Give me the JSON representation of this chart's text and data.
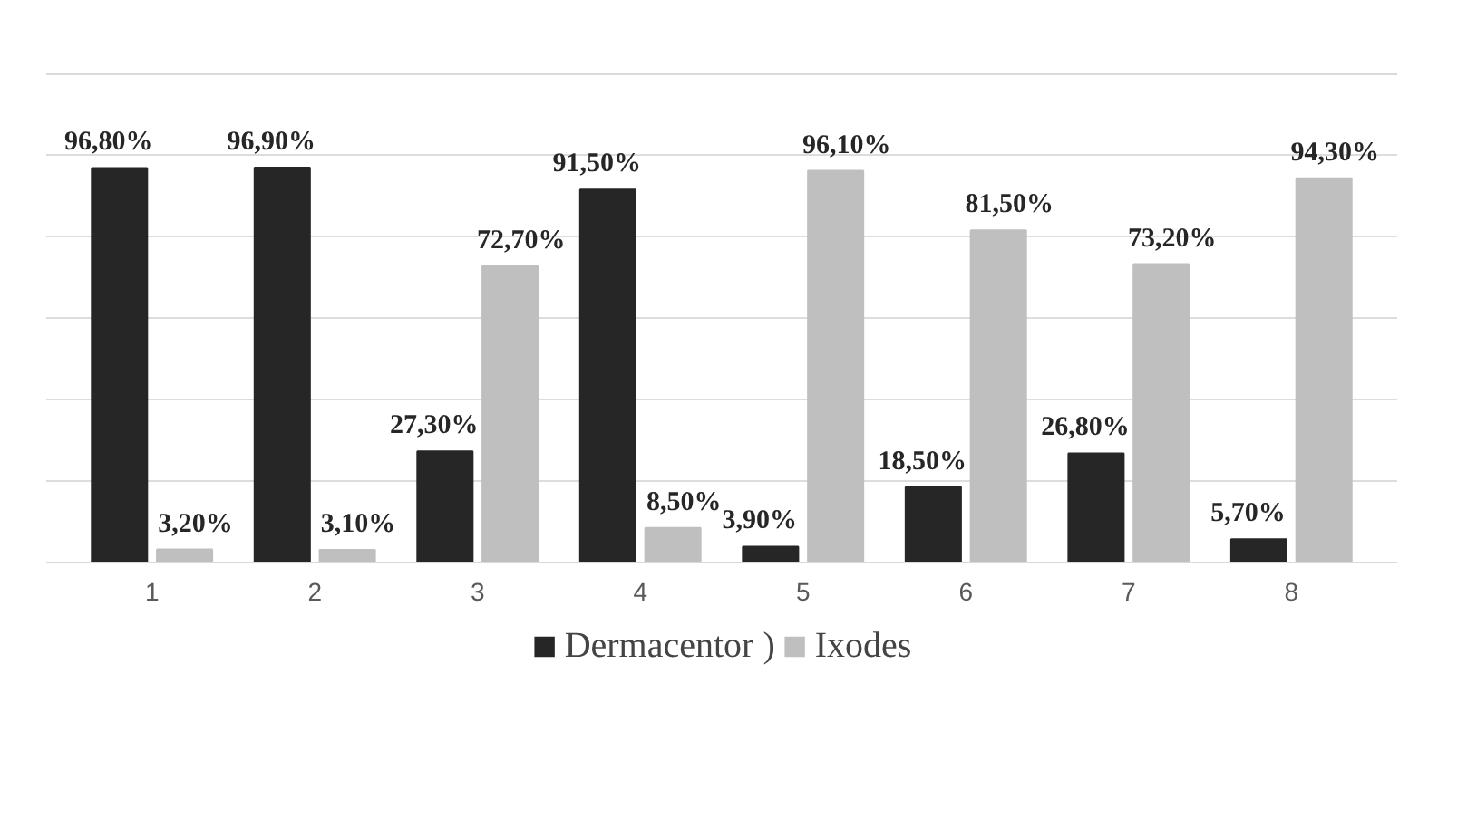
{
  "chart_data": {
    "type": "bar",
    "categories": [
      "1",
      "2",
      "3",
      "4",
      "5",
      "6",
      "7",
      "8"
    ],
    "series": [
      {
        "name": "Dermacentor )",
        "color": "#262626",
        "values": [
          96.8,
          96.9,
          27.3,
          91.5,
          3.9,
          18.5,
          26.8,
          5.7
        ],
        "value_labels": [
          "96,80%",
          "96,90%",
          "27,30%",
          "91,50%",
          "3,90%",
          "18,50%",
          "26,80%",
          "5,70%"
        ]
      },
      {
        "name": "Ixodes",
        "color": "#bfbfbf",
        "values": [
          3.2,
          3.1,
          72.7,
          8.5,
          96.1,
          81.5,
          73.2,
          94.3
        ],
        "value_labels": [
          "3,20%",
          "3,10%",
          "72,70%",
          "8,50%",
          "96,10%",
          "81,50%",
          "73,20%",
          "94,30%"
        ]
      }
    ],
    "ylim": [
      0,
      120
    ],
    "yticks": [
      {
        "value": 0,
        "label": null
      },
      {
        "value": 20,
        "label": null
      },
      {
        "value": 40,
        "label": null
      },
      {
        "value": 60,
        "label": null
      },
      {
        "value": 80,
        "label": null
      },
      {
        "value": 100,
        "label": null
      },
      {
        "value": 120,
        "label": null
      }
    ],
    "grid": "y",
    "legend": "bottom",
    "tick_labels": "x"
  }
}
